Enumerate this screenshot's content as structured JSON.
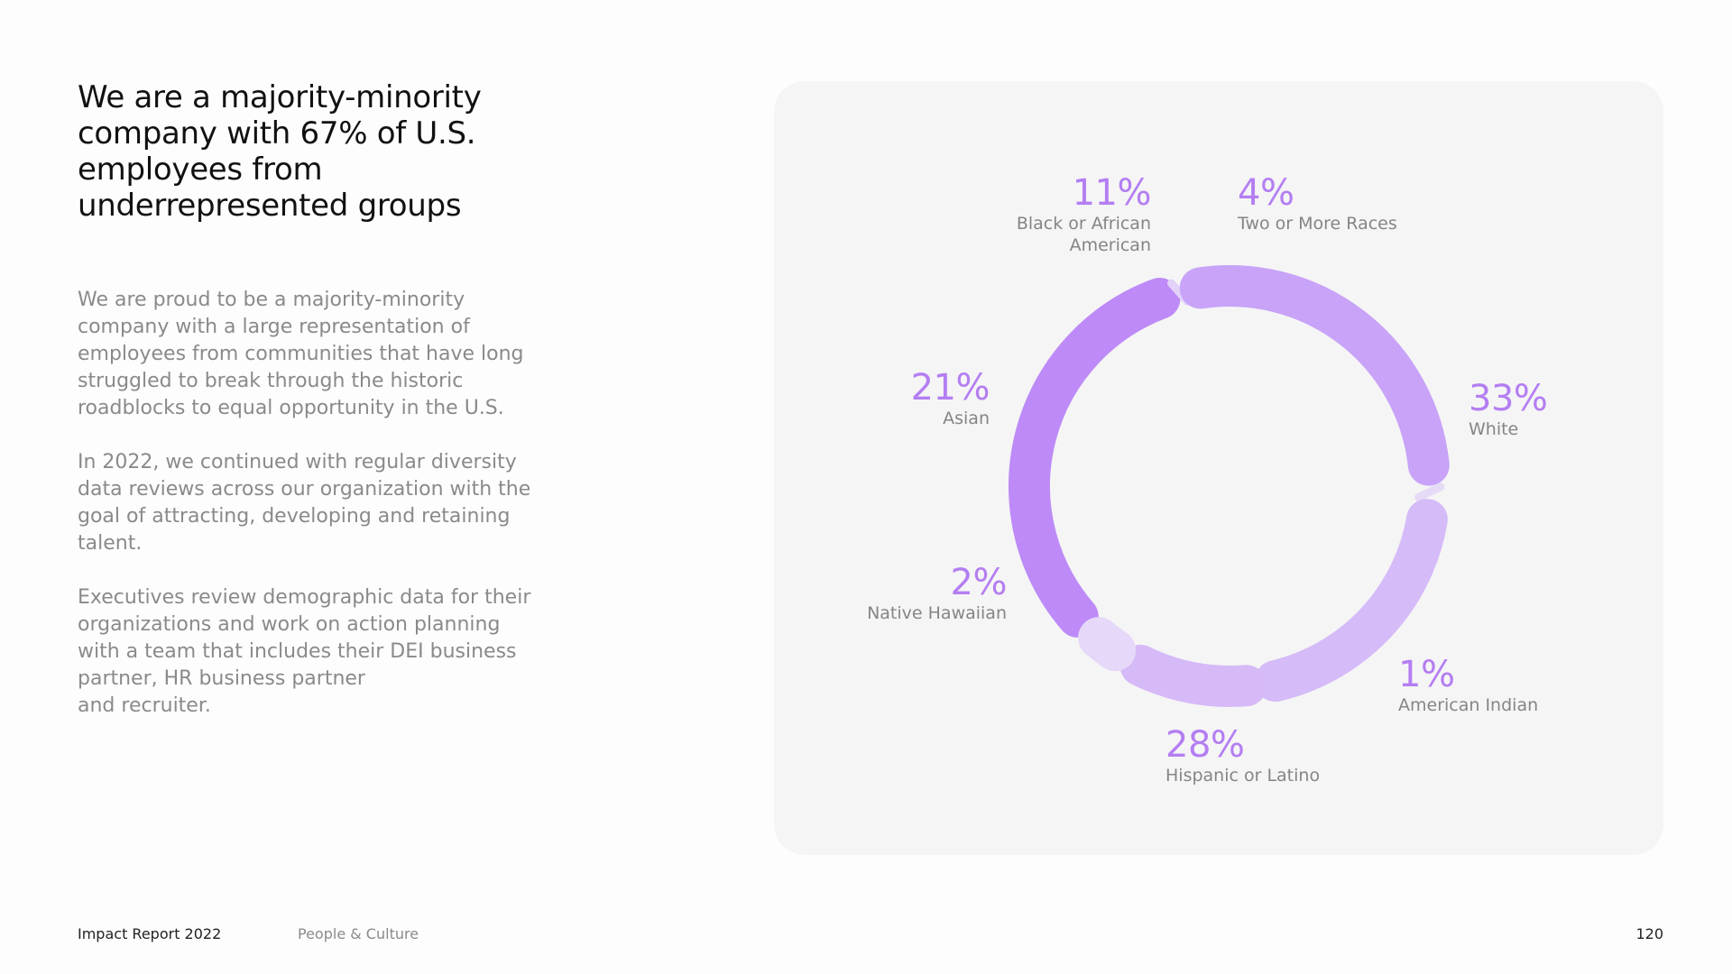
{
  "headline": {
    "lines": [
      "We are a majority-minority",
      "company with 67% of U.S.",
      "employees from",
      "underrepresented groups"
    ]
  },
  "body": {
    "paragraphs": [
      [
        "We are proud to be a majority-minority",
        "company with a large representation of",
        "employees from communities that have long",
        "struggled to break through the historic",
        "roadblocks to equal opportunity in the U.S."
      ],
      [
        "In 2022, we continued with regular diversity",
        "data reviews across our organization with the",
        "goal of attracting, developing and retaining",
        "talent."
      ],
      [
        "Executives review demographic data for their",
        "organizations and work on action planning",
        "with a team that includes their DEI business",
        "partner, HR business partner",
        "and recruiter."
      ]
    ]
  },
  "chart_data": {
    "type": "pie",
    "style": "donut",
    "labels": [
      "White",
      "American Indian",
      "Hispanic or Latino",
      "Native Hawaiian",
      "Asian",
      "Black or African American",
      "Two or More Races"
    ],
    "values": [
      33,
      1,
      28,
      2,
      21,
      11,
      4
    ],
    "value_labels": [
      "33%",
      "1%",
      "28%",
      "2%",
      "21%",
      "11%",
      "4%"
    ],
    "name_lines": [
      [
        "White"
      ],
      [
        "American Indian"
      ],
      [
        "Hispanic or Latino"
      ],
      [
        "Native Hawaiian"
      ],
      [
        "Asian"
      ],
      [
        "Black or African",
        "American"
      ],
      [
        "Two or More Races"
      ]
    ],
    "colors": [
      "#bd8af7",
      "#e3d2f8",
      "#c8a3f8",
      "#e6dbf7",
      "#d5bbf8",
      "#d6baf7",
      "#e6d8f8"
    ],
    "card_background": "#f5f5f5",
    "label_color": "#b47ef2"
  },
  "footer": {
    "report_title": "Impact Report 2022",
    "section": "People & Culture",
    "page_number": "120"
  }
}
